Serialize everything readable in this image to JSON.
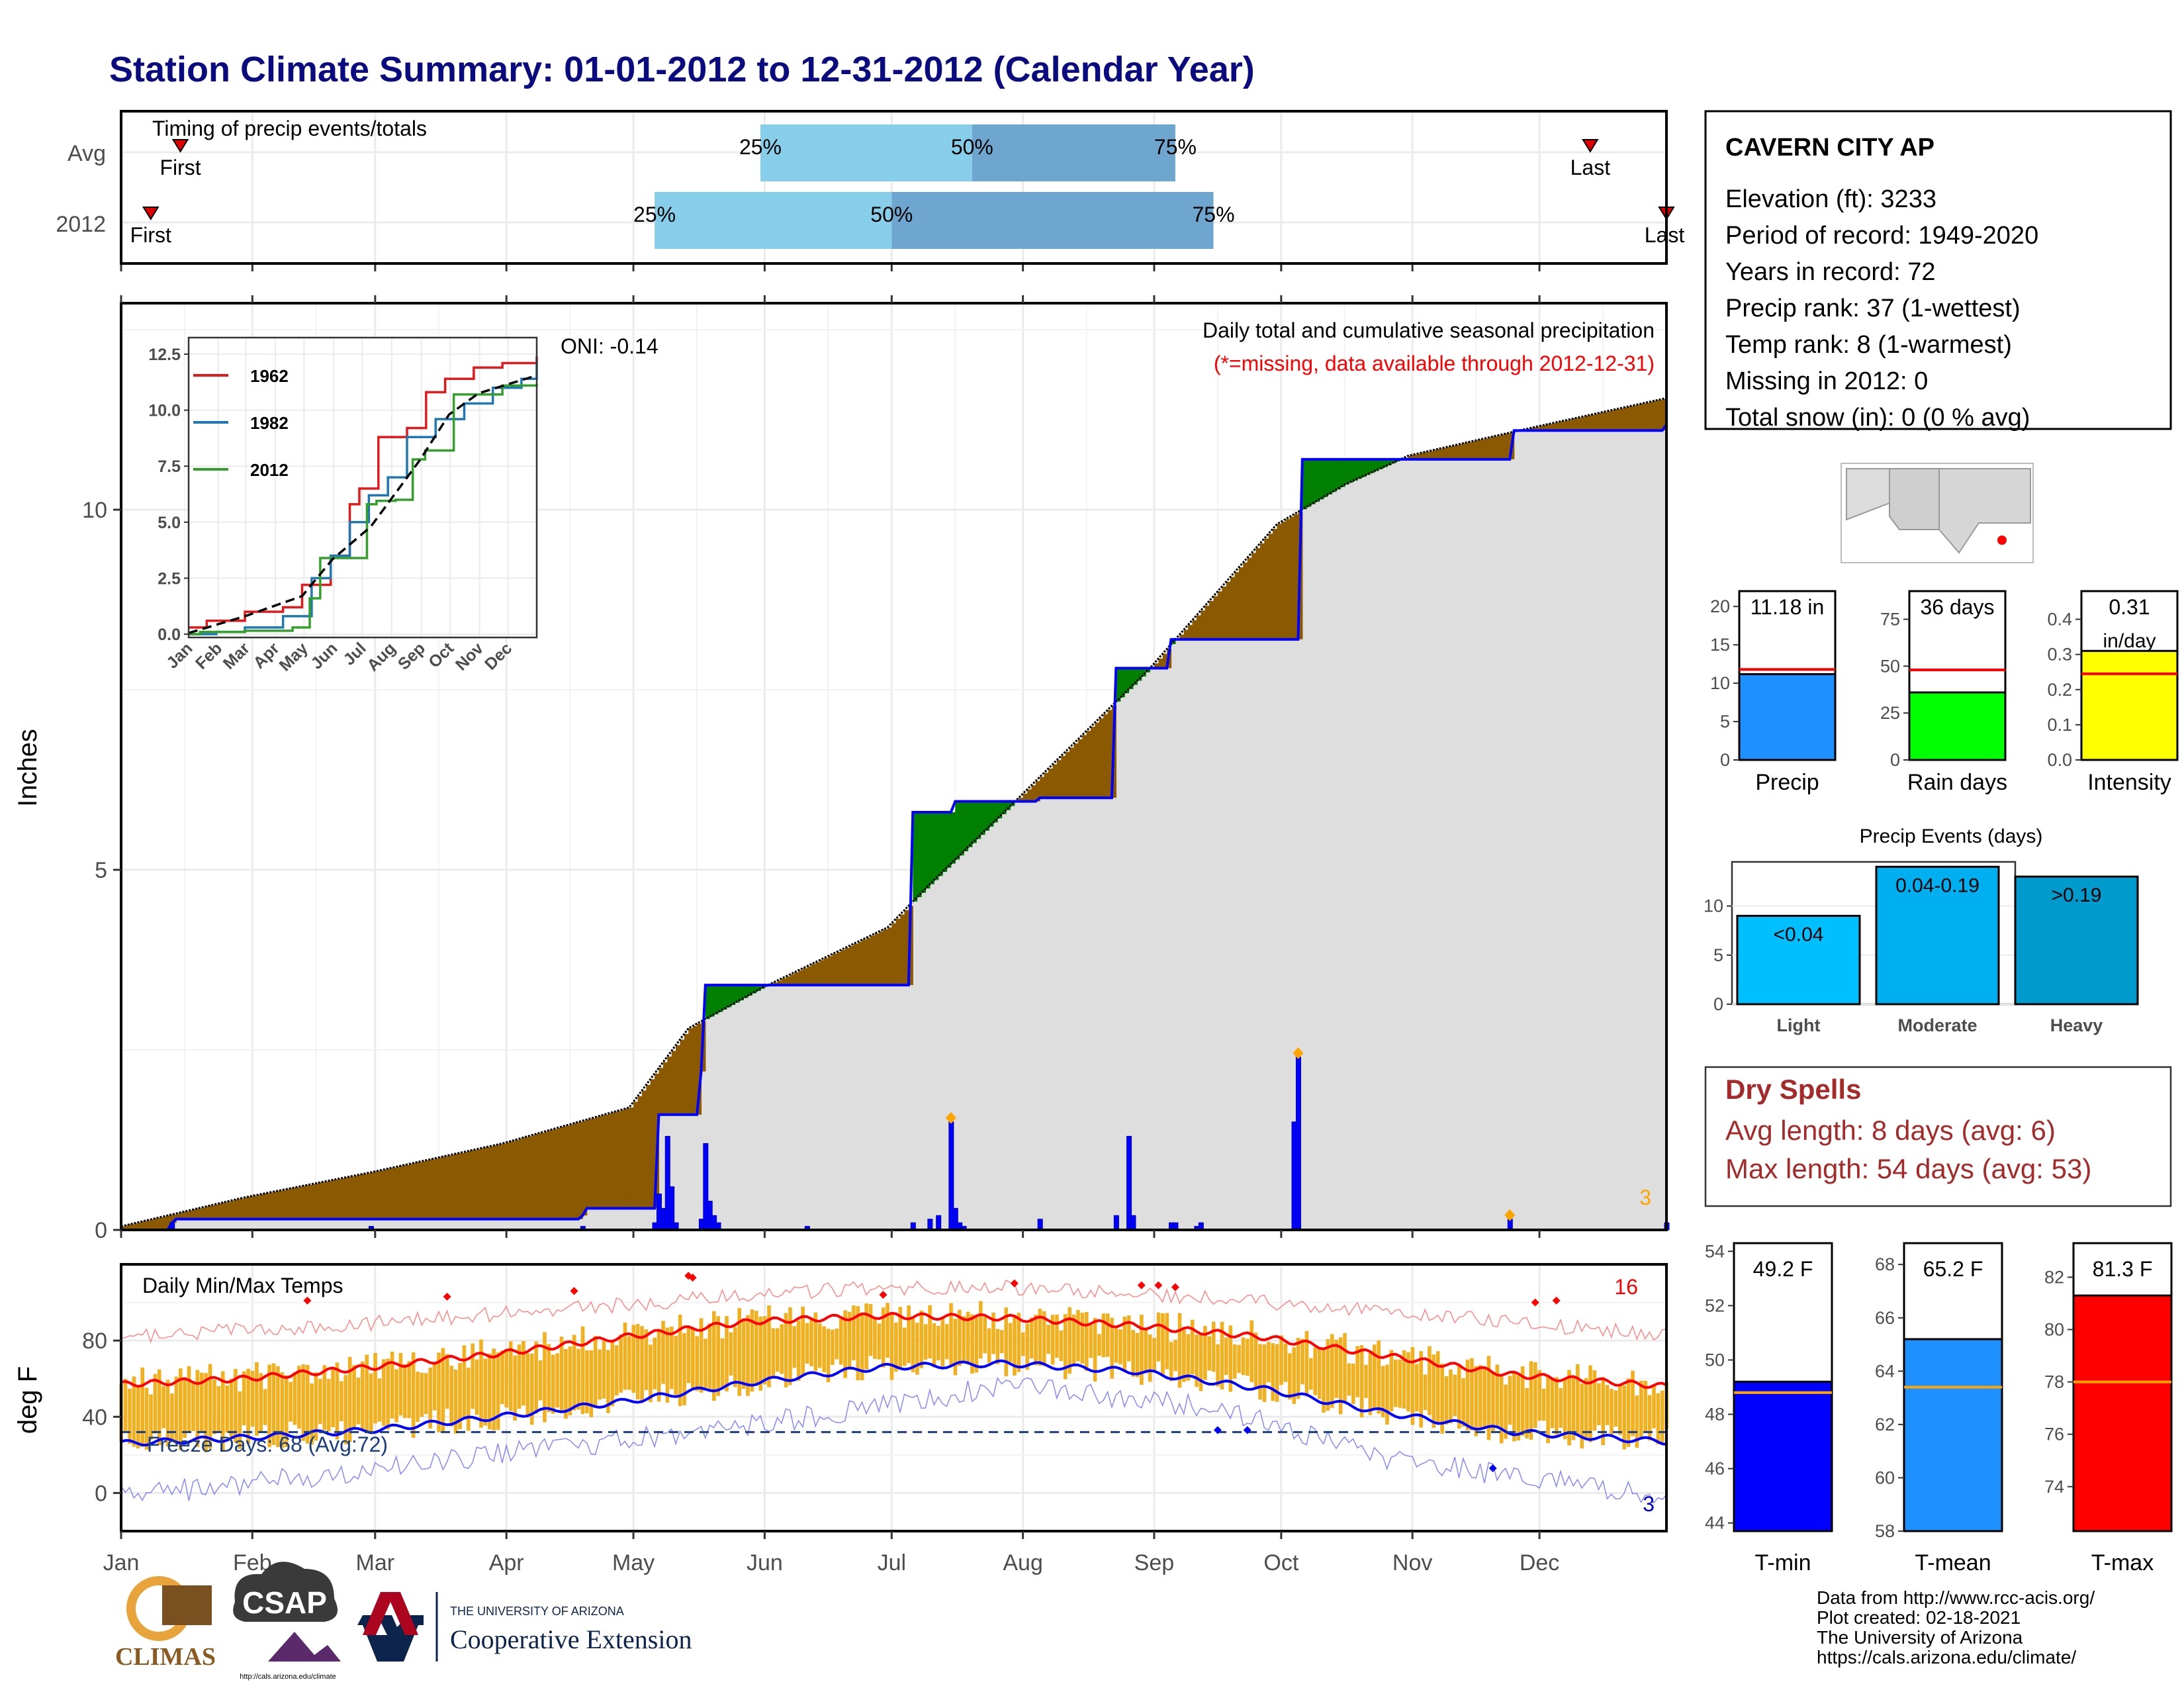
{
  "page": {
    "title": "Station Climate Summary: 01-01-2012 to 12-31-2012 (Calendar Year)"
  },
  "months": [
    "Jan",
    "Feb",
    "Mar",
    "Apr",
    "May",
    "Jun",
    "Jul",
    "Aug",
    "Sep",
    "Oct",
    "Nov",
    "Dec"
  ],
  "timing": {
    "title": "Timing of precip events/totals",
    "rows": [
      {
        "label": "Avg",
        "first_day": 15,
        "last_day": 348,
        "p25_day": 152,
        "p50_day": 202,
        "p75_day": 250,
        "first_label": "First",
        "last_label": "Last"
      },
      {
        "label": "2012",
        "first_day": 8,
        "last_day": 366,
        "p25_day": 127,
        "p50_day": 183,
        "p75_day": 259,
        "first_label": "First",
        "last_label": "Last"
      }
    ],
    "pct_labels": [
      "25%",
      "50%",
      "75%"
    ]
  },
  "precip": {
    "ylabel": "Inches",
    "oni_label": "ONI: -0.14",
    "title": "Daily total and cumulative seasonal precipitation",
    "subtitle": "(*=missing, data available through 2012-12-31)",
    "count_label": "3",
    "yticks": [
      "0",
      "5",
      "10"
    ],
    "chart_data": {
      "type": "area",
      "x_unit": "day of year 2012",
      "ylim": [
        0,
        12.5
      ],
      "avg_cumulative": {
        "x": [
          1,
          30,
          60,
          91,
          121,
          135,
          152,
          182,
          192,
          213,
          244,
          274,
          290,
          305,
          335,
          366
        ],
        "y": [
          0.05,
          0.45,
          0.8,
          1.2,
          1.7,
          2.8,
          3.35,
          4.2,
          4.8,
          6.0,
          7.8,
          9.8,
          10.35,
          10.75,
          11.15,
          11.55
        ]
      },
      "year_cumulative": {
        "x": [
          1,
          8,
          13,
          14,
          60,
          110,
          111,
          127,
          128,
          138,
          139,
          187,
          188,
          197,
          198,
          217,
          218,
          235,
          236,
          248,
          249,
          250,
          270,
          279,
          280,
          290,
          305,
          330,
          366
        ],
        "y": [
          0,
          0,
          0.1,
          0.15,
          0.15,
          0.2,
          0.3,
          0.3,
          1.6,
          2.2,
          3.4,
          3.4,
          5.8,
          5.8,
          5.95,
          5.95,
          6.0,
          6.0,
          7.8,
          7.8,
          8.2,
          8.2,
          8.2,
          8.2,
          10.7,
          10.7,
          10.7,
          11.1,
          11.18
        ]
      },
      "daily_bars": {
        "x": [
          13,
          60,
          110,
          127,
          128,
          129,
          130,
          131,
          132,
          138,
          139,
          140,
          141,
          142,
          163,
          188,
          192,
          194,
          197,
          198,
          199,
          200,
          218,
          236,
          239,
          240,
          249,
          250,
          255,
          256,
          278,
          279,
          329,
          366
        ],
        "y": [
          0.1,
          0.05,
          0.05,
          0.1,
          0.5,
          0.3,
          1.3,
          0.6,
          0.1,
          0.15,
          1.2,
          0.4,
          0.2,
          0.1,
          0.05,
          0.1,
          0.15,
          0.2,
          1.5,
          0.3,
          0.1,
          0.05,
          0.15,
          0.2,
          1.3,
          0.2,
          0.1,
          0.1,
          0.05,
          0.1,
          1.5,
          2.4,
          0.15,
          0.1
        ]
      },
      "max_markers": {
        "x": [
          197,
          279,
          329
        ],
        "y": [
          1.5,
          2.4,
          0.15
        ]
      }
    }
  },
  "inset": {
    "yticks": [
      "0.0",
      "2.5",
      "5.0",
      "7.5",
      "10.0",
      "12.5"
    ],
    "chart_data": {
      "type": "line",
      "ylim": [
        0,
        12.5
      ],
      "series": [
        {
          "name": "1962",
          "color": "#e31a1c",
          "x": [
            1,
            20,
            60,
            100,
            120,
            150,
            170,
            180,
            200,
            230,
            250,
            270,
            300,
            330,
            366
          ],
          "y": [
            0.3,
            0.6,
            1.0,
            1.2,
            2.2,
            3.5,
            5.8,
            6.5,
            8.8,
            9.2,
            10.8,
            11.4,
            11.9,
            12.1,
            12.4
          ]
        },
        {
          "name": "1982",
          "color": "#1f78b4",
          "x": [
            1,
            30,
            60,
            100,
            130,
            150,
            170,
            190,
            210,
            230,
            260,
            290,
            320,
            350,
            366
          ],
          "y": [
            0.0,
            0.1,
            0.3,
            0.8,
            2.5,
            3.5,
            5.0,
            6.2,
            7.0,
            8.8,
            9.6,
            10.3,
            11.0,
            11.4,
            12.2
          ]
        },
        {
          "name": "2012",
          "color": "#33a02c",
          "x": [
            1,
            13,
            60,
            110,
            128,
            139,
            187,
            188,
            198,
            218,
            236,
            249,
            279,
            305,
            330,
            366
          ],
          "y": [
            0,
            0.1,
            0.15,
            0.3,
            1.6,
            3.4,
            3.4,
            5.8,
            5.95,
            6.0,
            7.8,
            8.2,
            10.7,
            10.7,
            11.1,
            11.18
          ]
        }
      ],
      "avg": {
        "x": [
          1,
          60,
          120,
          152,
          192,
          244,
          274,
          305,
          366
        ],
        "y": [
          0.05,
          0.8,
          1.7,
          3.35,
          4.8,
          7.8,
          9.8,
          10.75,
          11.55
        ]
      }
    }
  },
  "temps": {
    "ylabel": "deg F",
    "title": "Daily Min/Max Temps",
    "freeze_label": "Freeze Days: 68 (Avg:72)",
    "count_top": "16",
    "count_bottom": "3",
    "yticks": [
      "0",
      "40",
      "80"
    ],
    "chart_data": {
      "type": "line",
      "ylim": [
        -20,
        120
      ],
      "freeze_line": 32,
      "max_normal": {
        "x": [
          1,
          30,
          60,
          90,
          120,
          150,
          180,
          210,
          240,
          270,
          300,
          330,
          366
        ],
        "y": [
          57,
          60,
          66,
          73,
          82,
          90,
          93,
          92,
          88,
          82,
          72,
          62,
          56
        ]
      },
      "min_normal": {
        "x": [
          1,
          30,
          60,
          90,
          120,
          150,
          180,
          210,
          240,
          270,
          300,
          330,
          366
        ],
        "y": [
          26,
          29,
          33,
          40,
          48,
          58,
          66,
          68,
          64,
          55,
          42,
          32,
          27
        ]
      },
      "max_record": {
        "x": [
          1,
          60,
          120,
          170,
          210,
          260,
          300,
          366
        ],
        "y": [
          82,
          89,
          99,
          107,
          108,
          102,
          95,
          83
        ]
      },
      "min_record": {
        "x": [
          1,
          60,
          120,
          170,
          210,
          260,
          300,
          366
        ],
        "y": [
          -2,
          12,
          28,
          42,
          56,
          45,
          18,
          -2
        ]
      }
    }
  },
  "station": {
    "name": "CAVERN CITY AP",
    "lines": [
      "Elevation (ft): 3233",
      "Period of record: 1949-2020",
      "Years in record: 72",
      "Precip rank: 37 (1-wettest)",
      "Temp rank: 8 (1-warmest)",
      "Missing in 2012: 0",
      "Total snow (in): 0 (0 % avg)"
    ]
  },
  "summary_bars": [
    {
      "label": "Precip",
      "value_label": "11.18 in",
      "value": 11.18,
      "avg": 11.8,
      "ylim": [
        0,
        22
      ],
      "yticks": [
        0,
        5,
        10,
        15,
        20
      ],
      "color": "#1e90ff"
    },
    {
      "label": "Rain days",
      "value_label": "36 days",
      "value": 36,
      "avg": 48,
      "ylim": [
        0,
        90
      ],
      "yticks": [
        0,
        25,
        50,
        75
      ],
      "color": "#00ff00"
    },
    {
      "label": "Intensity",
      "value_label": "0.31",
      "value_label2": "in/day",
      "value": 0.31,
      "avg": 0.245,
      "ylim": [
        0,
        0.48
      ],
      "yticks": [
        "0.0",
        "0.1",
        "0.2",
        "0.3",
        "0.4"
      ],
      "color": "#ffff00"
    }
  ],
  "events": {
    "title": "Precip Events (days)",
    "chart_data": {
      "type": "bar",
      "categories": [
        "Light",
        "Moderate",
        "Heavy"
      ],
      "bar_labels": [
        "<0.04",
        "0.04-0.19",
        ">0.19"
      ],
      "values": [
        9,
        14,
        13
      ],
      "colors": [
        "#00bfff",
        "#00afef",
        "#009acd"
      ],
      "ylim": [
        0,
        14.5
      ],
      "yticks": [
        0,
        5,
        10
      ]
    }
  },
  "dry_spells": {
    "title": "Dry Spells",
    "avg_line": "Avg length: 8 days (avg: 6)",
    "max_line": "Max length: 54 days (avg: 53)"
  },
  "temp_bars": [
    {
      "label": "T-min",
      "value_label": "49.2 F",
      "value": 49.2,
      "avg": 48.8,
      "ylim": [
        43.7,
        54.3
      ],
      "yticks": [
        44,
        46,
        48,
        50,
        52,
        54
      ],
      "color": "#0000ff"
    },
    {
      "label": "T-mean",
      "value_label": "65.2 F",
      "value": 65.2,
      "avg": 63.4,
      "ylim": [
        58,
        68.8
      ],
      "yticks": [
        58,
        60,
        62,
        64,
        66,
        68
      ],
      "color": "#1e90ff"
    },
    {
      "label": "T-max",
      "value_label": "81.3 F",
      "value": 81.3,
      "avg": 78.0,
      "ylim": [
        72.3,
        83.3
      ],
      "yticks": [
        74,
        76,
        78,
        80,
        82
      ],
      "color": "#ff0000"
    }
  ],
  "footer": {
    "credit_lines": [
      "Data from http://www.rcc-acis.org/",
      "Plot created: 02-18-2021",
      "The University of Arizona",
      "https://cals.arizona.edu/climate/"
    ],
    "logos": {
      "climas": "CLIMAS",
      "csap": "CSAP",
      "csap_url": "http://cals.arizona.edu/climate",
      "ua_small": "THE UNIVERSITY OF ARIZONA",
      "ua_big": "Cooperative Extension"
    }
  }
}
